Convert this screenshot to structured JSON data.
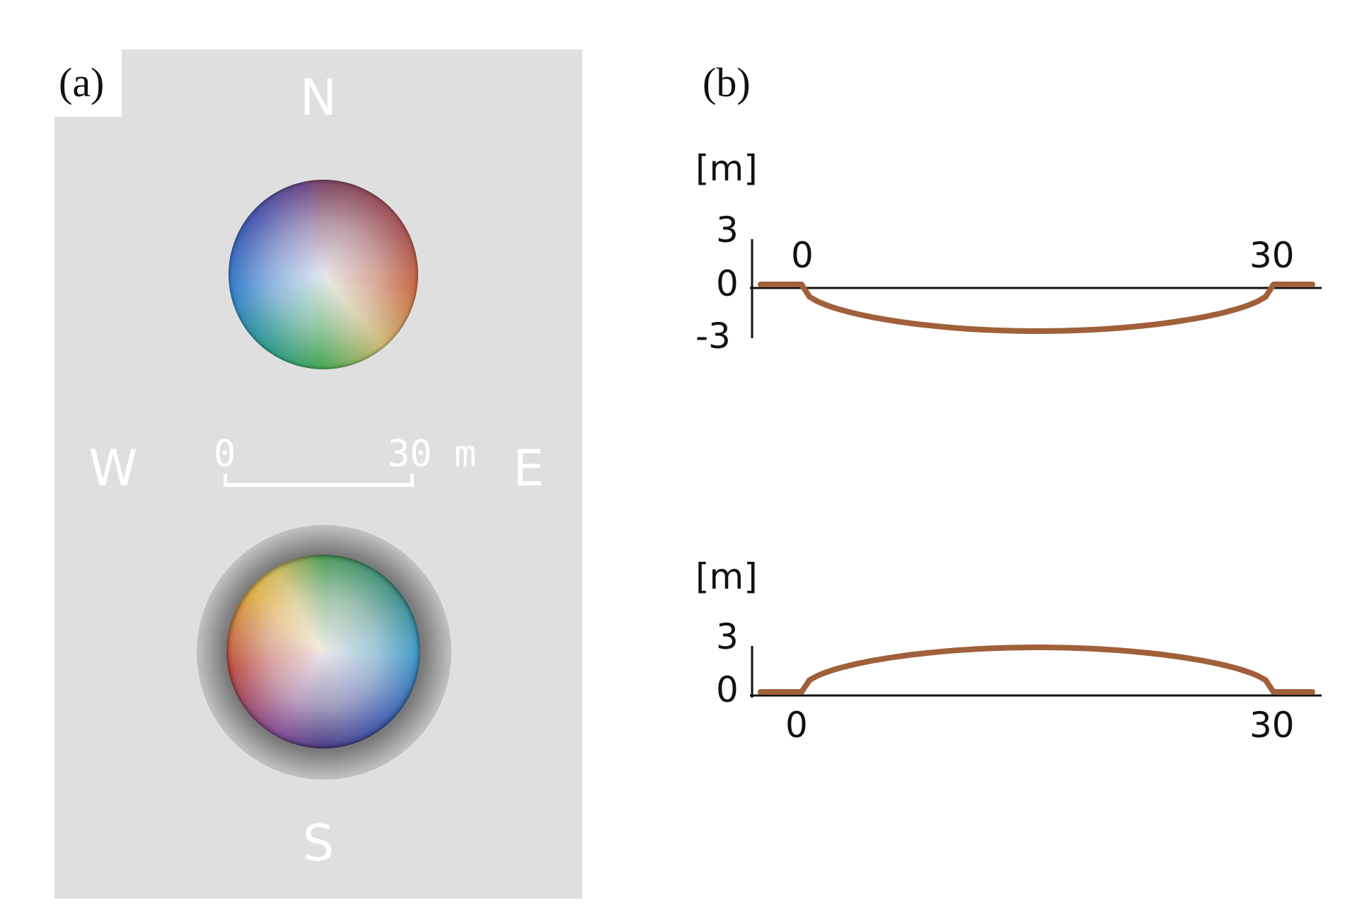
{
  "panel_a": {
    "label": "(a)",
    "compass": {
      "north": "N",
      "south": "S",
      "west": "W",
      "east": "E"
    },
    "scale_bar": {
      "start": "0",
      "end": "30 m"
    },
    "colors": {
      "background": "#dfdfdf",
      "text": "#ffffff"
    },
    "features": [
      {
        "name": "north-disk",
        "type": "depression"
      },
      {
        "name": "south-disk",
        "type": "mound"
      }
    ]
  },
  "panel_b": {
    "label": "(b)",
    "profile_color": "#a0603a",
    "profiles": [
      {
        "unit": "[m]",
        "y_ticks": [
          "3",
          "0",
          "-3"
        ],
        "x_ticks": [
          "0",
          "30"
        ],
        "depth_min": -3
      },
      {
        "unit": "[m]",
        "y_ticks": [
          "3",
          "0"
        ],
        "x_ticks": [
          "0",
          "30"
        ],
        "height_max": 3
      }
    ]
  }
}
